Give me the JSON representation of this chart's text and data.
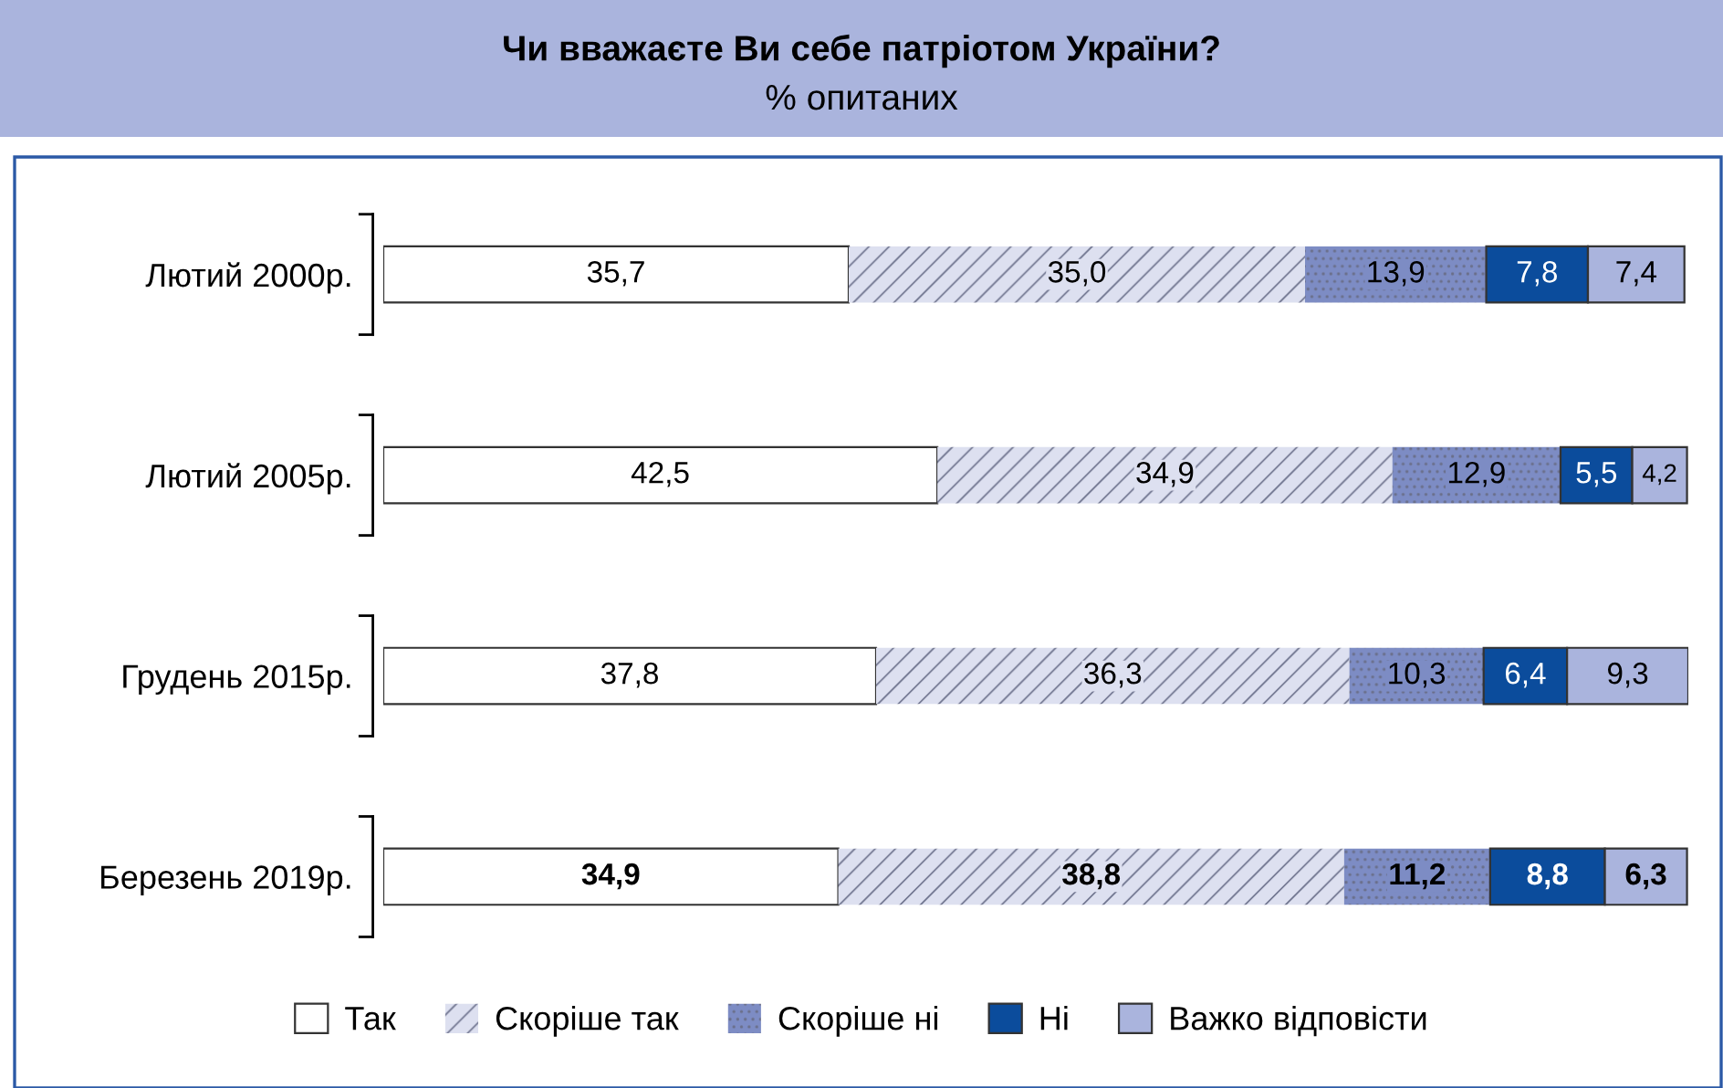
{
  "chart_data": {
    "type": "bar",
    "orientation": "horizontal",
    "stacked": true,
    "title": "Чи вважаєте Ви себе патріотом України?",
    "subtitle": "% опитаних",
    "categories": [
      "Лютий 2000р.",
      "Лютий 2005р.",
      "Грудень 2015р.",
      "Березень 2019р."
    ],
    "series": [
      {
        "name": "Так",
        "color": "#ffffff",
        "values": [
          35.7,
          42.5,
          37.8,
          34.9
        ],
        "value_labels": [
          "35,7",
          "42,5",
          "37,8",
          "34,9"
        ]
      },
      {
        "name": "Скоріше так",
        "color": "#dde0f0",
        "values": [
          35.0,
          34.9,
          36.3,
          38.8
        ],
        "value_labels": [
          "35,0",
          "34,9",
          "36,3",
          "38,8"
        ]
      },
      {
        "name": "Скоріше ні",
        "color": "#7d8cc4",
        "values": [
          13.9,
          12.9,
          10.3,
          11.2
        ],
        "value_labels": [
          "13,9",
          "12,9",
          "10,3",
          "11,2"
        ]
      },
      {
        "name": "Ні",
        "color": "#0b4c9c",
        "values": [
          7.8,
          5.5,
          6.4,
          8.8
        ],
        "value_labels": [
          "7,8",
          "5,5",
          "6,4",
          "8,8"
        ]
      },
      {
        "name": "Важко відповісти",
        "color": "#aab4dd",
        "values": [
          7.4,
          4.2,
          9.3,
          6.3
        ],
        "value_labels": [
          "7,4",
          "4,2",
          "9,3",
          "6,3"
        ]
      }
    ],
    "legend": "bottom"
  }
}
